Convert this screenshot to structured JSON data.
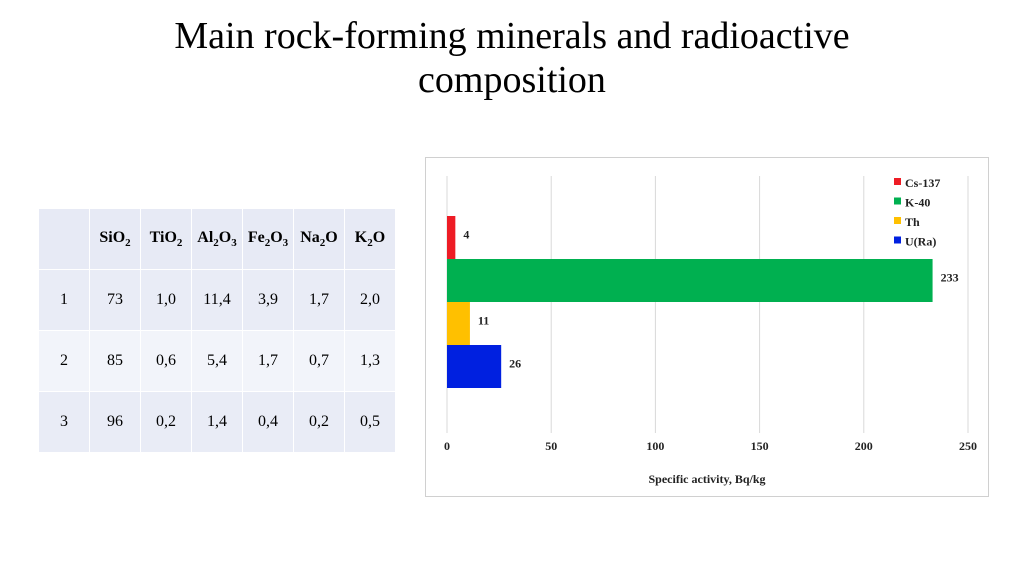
{
  "title": {
    "line1": "Main rock-forming minerals and radioactive",
    "line2": "composition"
  },
  "table": {
    "headers": [
      {
        "base": "Si",
        "sub": "O",
        "idx": "2"
      },
      {
        "base": "Ti",
        "sub": "O",
        "idx": "2"
      },
      {
        "base": "Al",
        "sub": "2",
        "mid": "O",
        "idx": "3"
      },
      {
        "base": "Fe",
        "sub": "2",
        "mid": "O",
        "idx": "3"
      },
      {
        "base": "Na",
        "sub": "2",
        "mid": "O",
        "idx": ""
      },
      {
        "base": "K",
        "sub": "2",
        "mid": "O",
        "idx": ""
      }
    ],
    "rows": [
      {
        "id": "1",
        "values": [
          "73",
          "1,0",
          "11,4",
          "3,9",
          "1,7",
          "2,0"
        ]
      },
      {
        "id": "2",
        "values": [
          "85",
          "0,6",
          "5,4",
          "1,7",
          "0,7",
          "1,3"
        ]
      },
      {
        "id": "3",
        "values": [
          "96",
          "0,2",
          "1,4",
          "0,4",
          "0,2",
          "0,5"
        ]
      }
    ]
  },
  "chart_data": {
    "type": "bar",
    "orientation": "horizontal",
    "categories": [
      "Cs-137",
      "K-40",
      "Th",
      "U(Ra)"
    ],
    "values": [
      4,
      233,
      11,
      26
    ],
    "colors": [
      "#ee1c25",
      "#00b050",
      "#ffc000",
      "#0020e0"
    ],
    "xlabel": "Specific activity, Bq/kg",
    "xlim": [
      0,
      250
    ],
    "xticks": [
      0,
      50,
      100,
      150,
      200,
      250
    ],
    "grid": "vertical",
    "legend": "top-right"
  }
}
